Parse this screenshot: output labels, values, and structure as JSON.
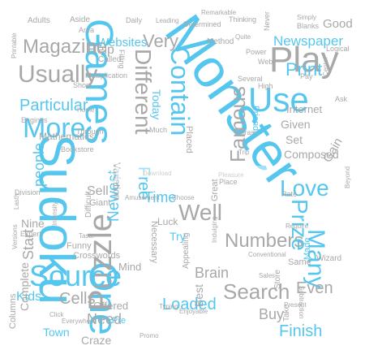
{
  "colors": {
    "blue": "#55c6ee",
    "gray": "#a8a8a8",
    "dark_gray": "#8a8a8a"
  },
  "words": [
    {
      "text": "Monster",
      "color": "blue"
    },
    {
      "text": "Sudoku",
      "color": "blue"
    },
    {
      "text": "Games",
      "color": "blue"
    },
    {
      "text": "One",
      "color": "blue"
    },
    {
      "text": "Puzzle",
      "color": "gray"
    },
    {
      "text": "Play",
      "color": "gray"
    },
    {
      "text": "Use",
      "color": "blue"
    },
    {
      "text": "Contain",
      "color": "blue"
    },
    {
      "text": "More",
      "color": "blue"
    },
    {
      "text": "Usually",
      "color": "gray"
    },
    {
      "text": "Source",
      "color": "blue"
    },
    {
      "text": "Magazine",
      "color": "gray"
    },
    {
      "text": "Different",
      "color": "gray"
    },
    {
      "text": "Newspaper",
      "color": "blue"
    },
    {
      "text": "Numbers",
      "color": "gray"
    },
    {
      "text": "Search",
      "color": "gray"
    },
    {
      "text": "Famous",
      "color": "gray"
    },
    {
      "text": "Well",
      "color": "gray"
    },
    {
      "text": "Many",
      "color": "blue"
    },
    {
      "text": "Love",
      "color": "blue"
    },
    {
      "text": "Prize",
      "color": "blue"
    },
    {
      "text": "Print",
      "color": "blue"
    },
    {
      "text": "Very",
      "color": "gray"
    },
    {
      "text": "Particular",
      "color": "blue"
    },
    {
      "text": "Websites",
      "color": "blue"
    },
    {
      "text": "Mathematics",
      "color": "gray"
    },
    {
      "text": "Newest",
      "color": "blue"
    },
    {
      "text": "Loaded",
      "color": "blue"
    },
    {
      "text": "Even",
      "color": "gray"
    },
    {
      "text": "Start",
      "color": "gray"
    },
    {
      "text": "Cells",
      "color": "gray"
    },
    {
      "text": "Brain",
      "color": "gray"
    },
    {
      "text": "Finish",
      "color": "blue"
    },
    {
      "text": "Buy",
      "color": "gray"
    },
    {
      "text": "people",
      "color": "blue"
    },
    {
      "text": "Help",
      "color": "gray"
    },
    {
      "text": "Free",
      "color": "blue"
    },
    {
      "text": "Time",
      "color": "blue"
    },
    {
      "text": "Sell",
      "color": "gray"
    },
    {
      "text": "Kids",
      "color": "blue"
    },
    {
      "text": "Need",
      "color": "gray"
    },
    {
      "text": "Town",
      "color": "blue"
    },
    {
      "text": "Craze",
      "color": "gray"
    },
    {
      "text": "Internet",
      "color": "gray"
    },
    {
      "text": "Given",
      "color": "gray"
    },
    {
      "text": "Set",
      "color": "gray"
    },
    {
      "text": "Composed",
      "color": "gray"
    },
    {
      "text": "Good",
      "color": "gray"
    },
    {
      "text": "Nine",
      "color": "gray"
    },
    {
      "text": "Try",
      "color": "blue"
    },
    {
      "text": "Today",
      "color": "blue"
    },
    {
      "text": "Offered",
      "color": "gray"
    },
    {
      "text": "Complete",
      "color": "gray"
    },
    {
      "text": "Columns",
      "color": "gray"
    },
    {
      "text": "Funny",
      "color": "gray"
    },
    {
      "text": "Crosswords",
      "color": "gray"
    },
    {
      "text": "Mind",
      "color": "gray"
    },
    {
      "text": "Best",
      "color": "gray"
    },
    {
      "text": "Gain",
      "color": "gray"
    },
    {
      "text": "Adults",
      "color": "gray"
    },
    {
      "text": "Aside",
      "color": "gray"
    },
    {
      "text": "Giant",
      "color": "gray"
    },
    {
      "text": "Variation",
      "color": "gray"
    },
    {
      "text": "Necessary",
      "color": "gray"
    },
    {
      "text": "Luck",
      "color": "gray"
    },
    {
      "text": "Difficult",
      "color": "gray"
    },
    {
      "text": "Made",
      "color": "blue"
    },
    {
      "text": "Friends",
      "color": "blue"
    },
    {
      "text": "Method",
      "color": "gray"
    },
    {
      "text": "Called",
      "color": "gray"
    },
    {
      "text": "Great",
      "color": "gray"
    },
    {
      "text": "Same",
      "color": "gray"
    },
    {
      "text": "Pre",
      "color": "blue"
    },
    {
      "text": "Wizard",
      "color": "gray"
    },
    {
      "text": "Store",
      "color": "gray"
    },
    {
      "text": "Take",
      "color": "gray"
    },
    {
      "text": "Several",
      "color": "gray"
    },
    {
      "text": "Never",
      "color": "gray"
    },
    {
      "text": "Blanks",
      "color": "gray"
    },
    {
      "text": "Pay",
      "color": "gray"
    },
    {
      "text": "Bookstore",
      "color": "gray"
    },
    {
      "text": "Engines",
      "color": "gray"
    },
    {
      "text": "Multiplication",
      "color": "gray"
    },
    {
      "text": "Filling",
      "color": "gray"
    },
    {
      "text": "Place",
      "color": "gray"
    },
    {
      "text": "High",
      "color": "gray"
    },
    {
      "text": "Ask",
      "color": "gray"
    },
    {
      "text": "Rate",
      "color": "gray"
    },
    {
      "text": "Area",
      "color": "gray"
    },
    {
      "text": "Much",
      "color": "gray"
    },
    {
      "text": "Logical",
      "color": "gray"
    },
    {
      "text": "Daily",
      "color": "gray"
    },
    {
      "text": "Thinking",
      "color": "gray"
    },
    {
      "text": "Determined",
      "color": "gray"
    },
    {
      "text": "Remarkable",
      "color": "gray"
    },
    {
      "text": "Placed",
      "color": "gray"
    },
    {
      "text": "Expert",
      "color": "gray"
    },
    {
      "text": "Division",
      "color": "gray"
    },
    {
      "text": "Lastly",
      "color": "gray"
    },
    {
      "text": "Versions",
      "color": "gray"
    },
    {
      "text": "Through",
      "color": "gray"
    },
    {
      "text": "Short",
      "color": "gray"
    },
    {
      "text": "Home",
      "color": "gray"
    },
    {
      "text": "Click",
      "color": "gray"
    },
    {
      "text": "Appealing",
      "color": "gray"
    },
    {
      "text": "Sales",
      "color": "gray"
    },
    {
      "text": "Promo",
      "color": "gray"
    },
    {
      "text": "Everywhere",
      "color": "gray"
    },
    {
      "text": "Intensity",
      "color": "gray"
    },
    {
      "text": "Indulging",
      "color": "gray"
    },
    {
      "text": "Choose",
      "color": "gray"
    },
    {
      "text": "Amusement",
      "color": "gray"
    },
    {
      "text": "Phrase",
      "color": "gray"
    },
    {
      "text": "Leading",
      "color": "gray"
    },
    {
      "text": "Printable",
      "color": "gray"
    },
    {
      "text": "Power",
      "color": "gray"
    },
    {
      "text": "Web",
      "color": "gray"
    },
    {
      "text": "Trip",
      "color": "gray"
    },
    {
      "text": "Pleasure",
      "color": "gray"
    },
    {
      "text": "Conventional",
      "color": "gray"
    },
    {
      "text": "Present",
      "color": "gray"
    },
    {
      "text": "Subtraction",
      "color": "gray"
    },
    {
      "text": "Typing",
      "color": "gray"
    },
    {
      "text": "Beyond",
      "color": "gray"
    },
    {
      "text": "Simply",
      "color": "gray"
    },
    {
      "text": "Quite",
      "color": "gray"
    },
    {
      "text": "Center",
      "color": "gray"
    },
    {
      "text": "Require",
      "color": "gray"
    },
    {
      "text": "Download",
      "color": "gray"
    },
    {
      "text": "Enjoyable",
      "color": "gray"
    },
    {
      "text": "Taste",
      "color": "gray"
    }
  ]
}
